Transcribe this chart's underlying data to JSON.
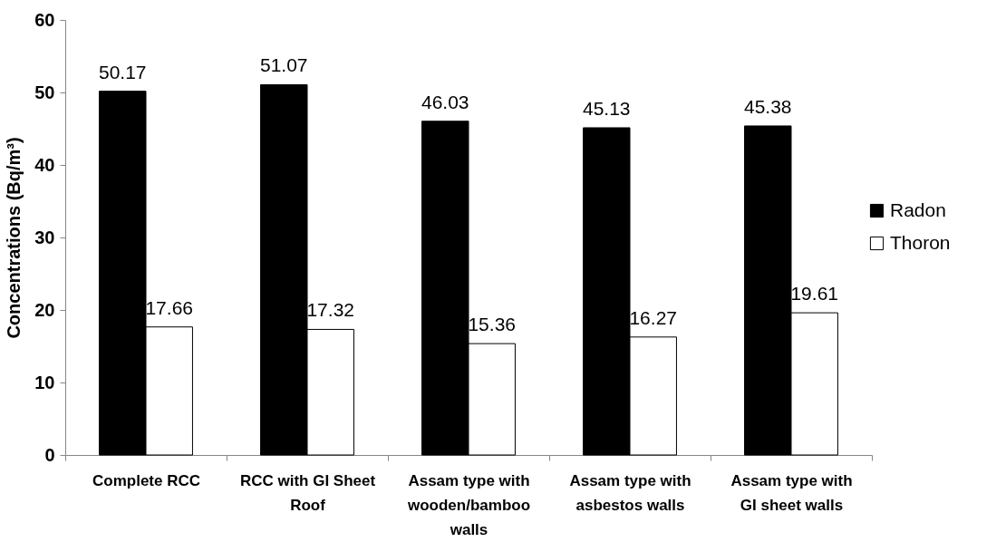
{
  "chart_data": {
    "type": "bar",
    "ylabel": "Concentrations (Bq/m³)",
    "categories": [
      "Complete RCC",
      "RCC with GI Sheet Roof",
      "Assam type with wooden/bamboo walls",
      "Assam type with asbestos walls",
      "Assam type with GI sheet walls"
    ],
    "series": [
      {
        "name": "Radon",
        "color": "#000000",
        "values": [
          50.17,
          51.07,
          46.03,
          45.13,
          45.38
        ]
      },
      {
        "name": "Thoron",
        "color": "#ffffff",
        "values": [
          17.66,
          17.32,
          15.36,
          16.27,
          19.61
        ]
      }
    ],
    "ylim": [
      0,
      60
    ],
    "yticks": [
      0,
      10,
      20,
      30,
      40,
      50,
      60
    ],
    "grid": false,
    "legend": "right",
    "data_labels": true
  }
}
